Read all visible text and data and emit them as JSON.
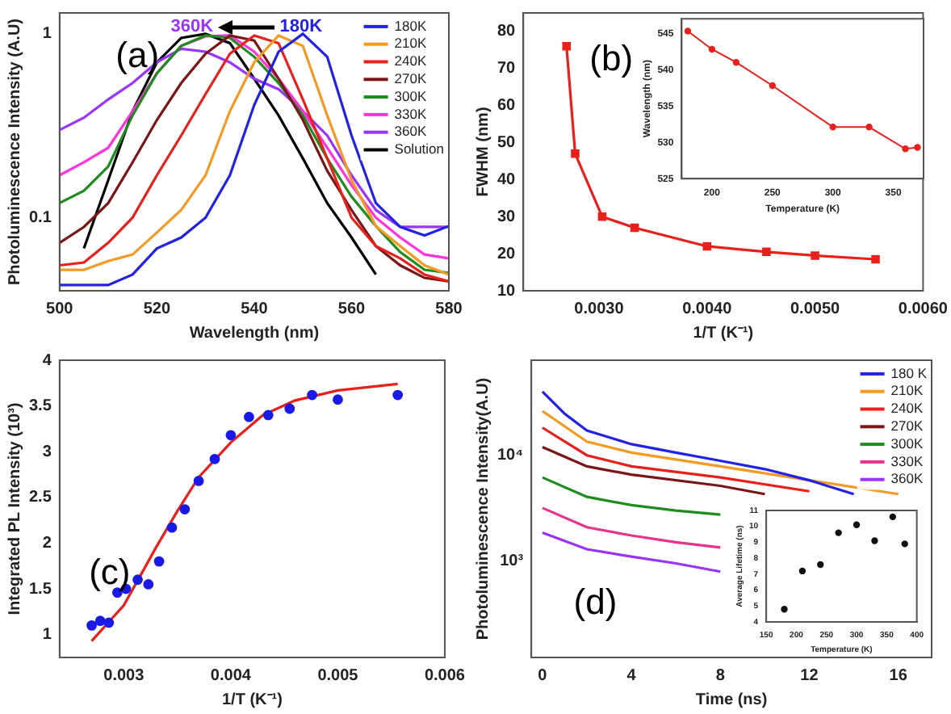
{
  "chart_data": [
    {
      "type": "line",
      "xlabel": "Wavelength (nm)",
      "ylabel": "Photoluminescence Intensity (A.U)",
      "x": [
        500,
        505,
        510,
        515,
        520,
        525,
        530,
        535,
        540,
        545,
        550,
        555,
        560,
        565,
        570,
        575,
        580
      ],
      "xlim": [
        500,
        580
      ],
      "xticks": [
        500,
        520,
        540,
        560,
        580
      ],
      "ylim": [
        0.04,
        1.3
      ],
      "yticks": [
        0.1,
        1
      ],
      "log": "y",
      "legend": "top right",
      "marker": "none",
      "annotations": [
        "(a)",
        "360K",
        "180K"
      ],
      "series": [
        {
          "name": "180K",
          "color": "#2222e6",
          "values": [
            0.043,
            0.043,
            0.043,
            0.049,
            0.068,
            0.078,
            0.1,
            0.17,
            0.41,
            0.8,
            1.0,
            0.75,
            0.28,
            0.12,
            0.089,
            0.08,
            0.09
          ]
        },
        {
          "name": "210K",
          "color": "#f39a24",
          "values": [
            0.052,
            0.052,
            0.058,
            0.063,
            0.083,
            0.11,
            0.17,
            0.38,
            0.7,
            0.98,
            0.86,
            0.36,
            0.16,
            0.09,
            0.07,
            0.055,
            0.049
          ]
        },
        {
          "name": "240K",
          "color": "#e8201c",
          "values": [
            0.055,
            0.057,
            0.073,
            0.1,
            0.17,
            0.28,
            0.47,
            0.78,
            0.98,
            0.89,
            0.44,
            0.21,
            0.1,
            0.07,
            0.06,
            0.049,
            0.045
          ]
        },
        {
          "name": "270K",
          "color": "#7a1616",
          "values": [
            0.073,
            0.089,
            0.12,
            0.2,
            0.34,
            0.54,
            0.78,
            0.98,
            0.92,
            0.57,
            0.34,
            0.18,
            0.11,
            0.07,
            0.055,
            0.047,
            0.045
          ]
        },
        {
          "name": "300K",
          "color": "#1e8c1e",
          "values": [
            0.12,
            0.14,
            0.19,
            0.36,
            0.61,
            0.86,
            0.98,
            0.95,
            0.75,
            0.54,
            0.36,
            0.21,
            0.13,
            0.09,
            0.065,
            0.052,
            0.05
          ]
        },
        {
          "name": "330K",
          "color": "#ff33dd",
          "values": [
            0.17,
            0.2,
            0.24,
            0.38,
            0.61,
            0.86,
            0.97,
            0.98,
            0.8,
            0.57,
            0.38,
            0.24,
            0.15,
            0.1,
            0.078,
            0.063,
            0.06
          ]
        },
        {
          "name": "360K",
          "color": "#9933ff",
          "values": [
            0.3,
            0.35,
            0.44,
            0.54,
            0.7,
            0.83,
            0.8,
            0.7,
            0.57,
            0.5,
            0.38,
            0.28,
            0.17,
            0.11,
            0.089,
            0.089,
            0.089
          ]
        },
        {
          "name": "Solution",
          "color": "#000000",
          "values": [
            null,
            0.068,
            0.16,
            0.38,
            0.7,
            0.95,
            1.0,
            0.89,
            0.57,
            0.36,
            0.21,
            0.12,
            0.078,
            0.049,
            null,
            null,
            null
          ]
        }
      ]
    },
    {
      "type": "line",
      "xlabel": "1/T (K⁻¹)",
      "ylabel": "FWHM (nm)",
      "xlim": [
        0.0023,
        0.006
      ],
      "xticks": [
        {
          "value": 0.003,
          "label": "0.0030"
        },
        {
          "value": 0.004,
          "label": "0.0040"
        },
        {
          "value": 0.005,
          "label": "0.0050"
        },
        {
          "value": 0.006,
          "label": "0.0060"
        }
      ],
      "ylim": [
        10,
        85
      ],
      "yticks": [
        10,
        20,
        30,
        40,
        50,
        60,
        70,
        80
      ],
      "marker": "square",
      "annotations": [
        "(b)"
      ],
      "series": [
        {
          "color": "#e8201c",
          "x": [
            0.0027,
            0.00278,
            0.00303,
            0.00333,
            0.004,
            0.00455,
            0.005,
            0.00556
          ],
          "values": [
            76,
            47,
            30,
            27,
            22,
            20.5,
            19.5,
            18.5
          ]
        }
      ]
    },
    {
      "type": "line",
      "xlabel": "Temperature (K)",
      "ylabel": "Wavelength (nm)",
      "xlim": [
        175,
        375
      ],
      "xticks": [
        200,
        250,
        300,
        350
      ],
      "ylim": [
        525,
        547
      ],
      "yticks": [
        525,
        530,
        535,
        540,
        545
      ],
      "marker": "circle",
      "series": [
        {
          "color": "#e8201c",
          "x": [
            180,
            200,
            220,
            250,
            300,
            330,
            360,
            370
          ],
          "values": [
            545.3,
            542.8,
            541,
            537.8,
            532.1,
            532.1,
            529.1,
            529.3
          ]
        }
      ]
    },
    {
      "type": "scatter",
      "xlabel": "1/T (K⁻¹)",
      "ylabel": "Integrated PL Intensity (10³)",
      "xlim": [
        0.0024,
        0.006
      ],
      "xticks": [
        0.003,
        0.004,
        0.005,
        0.006
      ],
      "ylim": [
        0.75,
        4.0
      ],
      "yticks": [
        1.0,
        1.5,
        2.0,
        2.5,
        3.0,
        3.5,
        4.0
      ],
      "marker": "circle",
      "annotations": [
        "(c)"
      ],
      "series": [
        {
          "color": "#1a1ae6",
          "x": [
            0.0027,
            0.00278,
            0.00286,
            0.00294,
            0.00302,
            0.00313,
            0.00323,
            0.00333,
            0.00345,
            0.00357,
            0.0037,
            0.00385,
            0.004,
            0.00417,
            0.00435,
            0.00455,
            0.00476,
            0.005,
            0.00556
          ],
          "values": [
            1.1,
            1.15,
            1.13,
            1.46,
            1.5,
            1.6,
            1.55,
            1.8,
            2.17,
            2.37,
            2.68,
            2.92,
            3.18,
            3.38,
            3.4,
            3.47,
            3.62,
            3.57,
            3.62
          ]
        },
        {
          "type": "line",
          "marker": "none",
          "color": "#e8201c",
          "x": [
            0.0027,
            0.003,
            0.0033,
            0.0035,
            0.0037,
            0.004,
            0.0043,
            0.0046,
            0.005,
            0.00556
          ],
          "values": [
            0.93,
            1.32,
            1.95,
            2.35,
            2.72,
            3.1,
            3.4,
            3.56,
            3.67,
            3.74
          ]
        }
      ]
    },
    {
      "type": "line",
      "xlabel": "Time (ns)",
      "ylabel": "Photoluminescence Intensity(A.U)",
      "xlim": [
        -0.5,
        17.5
      ],
      "xticks": [
        0,
        4,
        8,
        12,
        16
      ],
      "ylim": [
        120,
        80000
      ],
      "yticks": [
        {
          "value": 1000,
          "label": "10³"
        },
        {
          "value": 10000,
          "label": "10⁴"
        }
      ],
      "log": "y",
      "legend": "top right",
      "marker": "none",
      "annotations": [
        "(d)"
      ],
      "series": [
        {
          "name": "180 K",
          "color": "#2222e6",
          "x": [
            0,
            1,
            2,
            4,
            6,
            8,
            10,
            12,
            14
          ],
          "values": [
            40300,
            24800,
            17200,
            12750,
            10600,
            8860,
            7390,
            5790,
            4280
          ]
        },
        {
          "name": "210K",
          "color": "#f39a24",
          "x": [
            0,
            2,
            4,
            8,
            12,
            16
          ],
          "values": [
            26300,
            13500,
            10600,
            7850,
            5790,
            4280
          ]
        },
        {
          "name": "240K",
          "color": "#e8201c",
          "x": [
            0,
            2,
            4,
            8,
            12
          ],
          "values": [
            18300,
            10000,
            7850,
            6160,
            4550
          ]
        },
        {
          "name": "270K",
          "color": "#7a1616",
          "x": [
            0,
            2,
            4,
            8,
            10
          ],
          "values": [
            11980,
            7850,
            6550,
            5130,
            4280
          ]
        },
        {
          "name": "300K",
          "color": "#1e8c1e",
          "x": [
            0,
            2,
            4,
            6,
            8
          ],
          "values": [
            6160,
            4030,
            3360,
            2980,
            2730
          ]
        },
        {
          "name": "330K",
          "color": "#e8338c",
          "x": [
            0,
            2,
            4,
            6,
            8
          ],
          "values": [
            3160,
            2070,
            1730,
            1490,
            1330
          ]
        },
        {
          "name": "360K",
          "color": "#9933ff",
          "x": [
            0,
            2,
            4,
            6,
            8
          ],
          "values": [
            1840,
            1280,
            1090,
            940,
            785
          ]
        }
      ]
    },
    {
      "type": "scatter",
      "xlabel": "Temperature (K)",
      "ylabel": "Average Lifetime (ns)",
      "xlim": [
        150,
        400
      ],
      "xticks": [
        150,
        200,
        250,
        300,
        350,
        400
      ],
      "ylim": [
        4,
        11
      ],
      "yticks": [
        4,
        5,
        6,
        7,
        8,
        9,
        10,
        11
      ],
      "marker": "circle",
      "series": [
        {
          "color": "#111111",
          "x": [
            180,
            210,
            240,
            270,
            300,
            330,
            360,
            380
          ],
          "values": [
            4.8,
            7.2,
            7.6,
            9.6,
            10.1,
            9.1,
            10.6,
            8.9
          ]
        }
      ]
    }
  ]
}
